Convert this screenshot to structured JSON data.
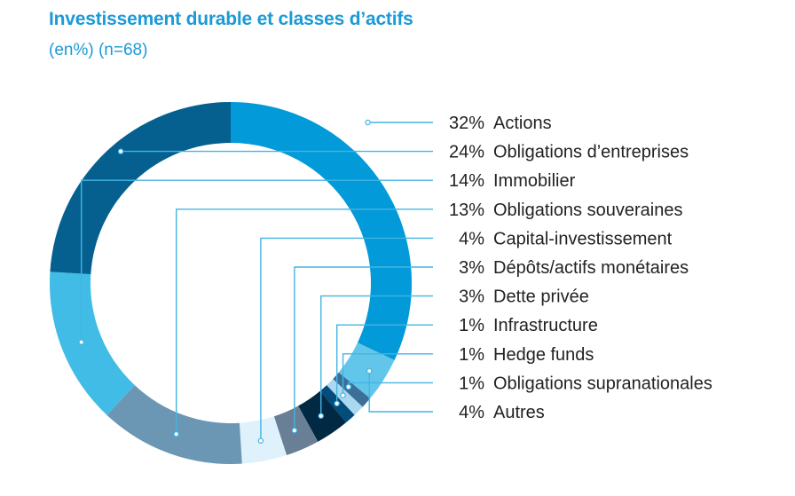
{
  "header": {
    "title": "Investissement durable et classes d’actifs",
    "subtitle": "(en%) (n=68)"
  },
  "chart_data": {
    "type": "pie",
    "variant": "donut",
    "title": "Investissement durable et classes d’actifs",
    "subtitle": "(en%) (n=68)",
    "unit": "%",
    "series": [
      {
        "label": "Actions",
        "value": 32,
        "value_label": "32%",
        "color": "#029ad8"
      },
      {
        "label": "Obligations d’entreprises",
        "value": 24,
        "value_label": "24%",
        "color": "#05608f"
      },
      {
        "label": "Immobilier",
        "value": 14,
        "value_label": "14%",
        "color": "#40bce6"
      },
      {
        "label": "Obligations souveraines",
        "value": 13,
        "value_label": "13%",
        "color": "#6b97b4"
      },
      {
        "label": "Capital-investissement",
        "value": 4,
        "value_label": "4%",
        "color": "#dff1fb"
      },
      {
        "label": "Dépôts/actifs monétaires",
        "value": 3,
        "value_label": "3%",
        "color": "#687f95"
      },
      {
        "label": "Dette privée",
        "value": 3,
        "value_label": "3%",
        "color": "#012944"
      },
      {
        "label": "Infrastructure",
        "value": 1,
        "value_label": "1%",
        "color": "#034c7c"
      },
      {
        "label": "Hedge funds",
        "value": 1,
        "value_label": "1%",
        "color": "#aad8f0"
      },
      {
        "label": "Obligations supranationales",
        "value": 1,
        "value_label": "1%",
        "color": "#3b6f97"
      },
      {
        "label": "Autres",
        "value": 4,
        "value_label": "4%",
        "color": "#61c6ea"
      }
    ],
    "draw_order": [
      0,
      10,
      9,
      8,
      7,
      6,
      5,
      4,
      3,
      2,
      1
    ],
    "leader_color": "#45b4e3"
  }
}
